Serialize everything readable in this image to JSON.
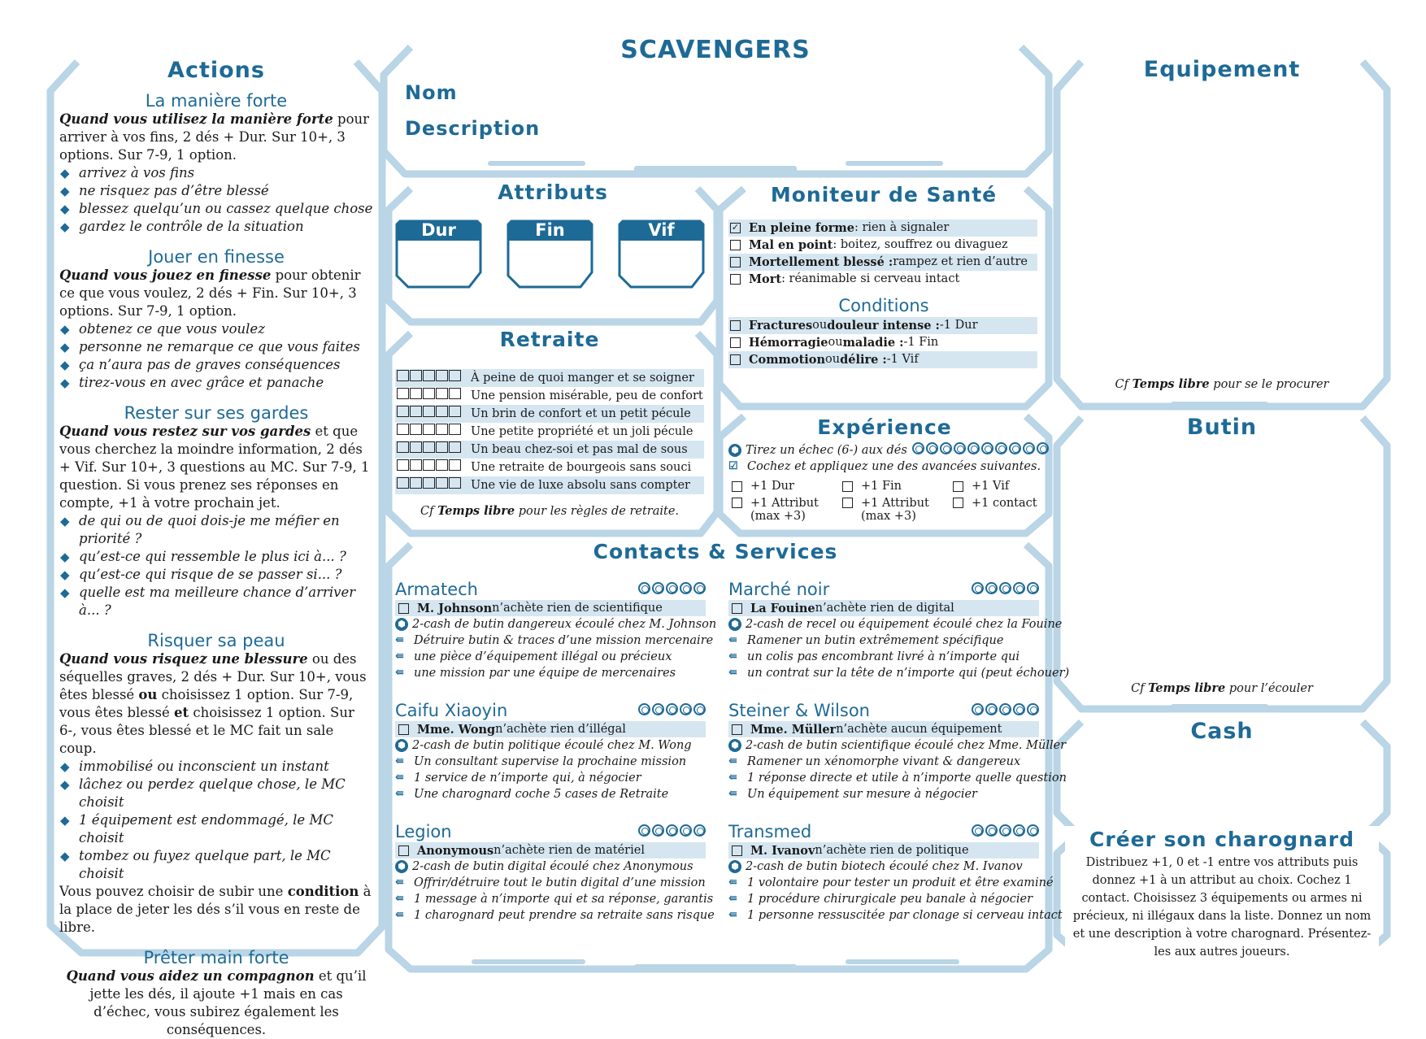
{
  "header": {
    "title": "SCAVENGERS",
    "nom_label": "Nom",
    "description_label": "Description"
  },
  "actions": {
    "title": "Actions",
    "moves": [
      {
        "name": "La manière forte",
        "trigger": "Quand vous utilisez la manière forte",
        "rest": " pour arriver à vos fins, 2 dés + Dur. Sur 10+, 3 options. Sur 7-9, 1 option.",
        "options": [
          "arrivez à vos fins",
          "ne risquez pas d’être blessé",
          "blessez quelqu’un ou cassez quelque chose",
          "gardez le contrôle de la situation"
        ]
      },
      {
        "name": "Jouer en finesse",
        "trigger": "Quand vous jouez en finesse",
        "rest": " pour obtenir ce que vous voulez, 2 dés + Fin. Sur 10+, 3 options. Sur 7-9, 1 option.",
        "options": [
          "obtenez ce que vous voulez",
          "personne ne remarque ce que vous faites",
          "ça n’aura pas de graves conséquences",
          "tirez-vous en avec grâce et panache"
        ]
      },
      {
        "name": "Rester sur ses gardes",
        "trigger": "Quand vous restez sur vos gardes",
        "rest": " et que vous cherchez la moindre information, 2 dés + Vif. Sur 10+, 3 questions au MC. Sur 7-9, 1 question. Si vous prenez ses réponses en compte, +1 à votre prochain jet.",
        "options": [
          "de qui ou de quoi dois-je me méfier en priorité ?",
          "qu’est-ce qui ressemble le plus ici à... ?",
          "qu’est-ce qui risque de se passer si... ?",
          "quelle est ma meilleure chance d’arriver à... ?"
        ]
      }
    ],
    "risk": {
      "name": "Risquer sa peau",
      "trigger": "Quand vous risquez une blessure",
      "p1": " ou des séquelles graves, 2 dés + Dur. Sur 10+, vous êtes blessé ",
      "ou": "ou",
      "p2": " choisissez 1 option. Sur 7-9, vous êtes blessé ",
      "et": "et",
      "p3": " choisissez 1 option. Sur 6-, vous êtes blessé et le MC fait un sale coup.",
      "options": [
        "immobilisé ou inconscient un instant",
        "lâchez ou perdez quelque chose, le MC choisit",
        "1 équipement est endommagé, le MC choisit",
        "tombez ou fuyez quelque part, le MC choisit"
      ],
      "after1": "Vous pouvez choisir de subir une ",
      "after_bold": "condition",
      "after2": " à la place de jeter les dés s’il vous en reste de libre."
    },
    "help": {
      "name": "Prêter main forte",
      "trigger": "Quand vous aidez un compagnon",
      "rest": " et qu’il jette les dés, il ajoute +1 mais en cas d’échec, vous subirez également les conséquences."
    }
  },
  "attributes": {
    "title": "Attributs",
    "names": [
      "Dur",
      "Fin",
      "Vif"
    ]
  },
  "health": {
    "title": "Moniteur de Santé",
    "states": [
      {
        "bold": "En pleine forme",
        "rest": " : rien à signaler",
        "checked": true
      },
      {
        "bold": "Mal en point",
        "rest": " : boitez, souffrez ou divaguez",
        "checked": false
      },
      {
        "bold": "Mortellement blessé :",
        "rest": " rampez et rien d’autre",
        "checked": false
      },
      {
        "bold": "Mort",
        "rest": " : réanimable si cerveau intact",
        "checked": false
      }
    ],
    "conditions_title": "Conditions",
    "conditions": [
      {
        "b1": "Fractures",
        "m": " ou ",
        "b2": "douleur intense :",
        "rest": " -1 Dur"
      },
      {
        "b1": "Hémorragie",
        "m": " ou ",
        "b2": "maladie :",
        "rest": " -1 Fin"
      },
      {
        "b1": "Commotion",
        "m": " ou ",
        "b2": "délire :",
        "rest": " -1 Vif"
      }
    ]
  },
  "retraite": {
    "title": "Retraite",
    "levels": [
      "À peine de quoi manger et se soigner",
      "Une pension misérable, peu de confort",
      "Un brin de confort et un petit pécule",
      "Une petite propriété et un joli pécule",
      "Un beau chez-soi et pas mal de sous",
      "Une retraite de bourgeois sans souci",
      "Une vie de luxe absolu sans compter"
    ],
    "note_pre": "Cf ",
    "note_bold": "Temps libre",
    "note_post": " pour les règles de retraite."
  },
  "experience": {
    "title": "Expérience",
    "line1": "Tirez un échec (6-) aux dés",
    "line2": "Cochez et appliquez une des avancées suivantes.",
    "advances": [
      "+1 Dur",
      "+1 Fin",
      "+1 Vif",
      "+1 Attribut (max +3)",
      "+1 Attribut (max +3)",
      "+1 contact"
    ]
  },
  "contacts": {
    "title": "Contacts & Services",
    "list": [
      {
        "name": "Armatech",
        "who": "M. Johnson",
        "buy": " n’achète rien de scientifique",
        "lines": [
          "2-cash de butin dangereux écoulé chez M. Johnson",
          "Détruire butin & traces d’une mission mercenaire",
          "une pièce d’équipement illégal ou précieux",
          "une mission par une équipe de mercenaires"
        ]
      },
      {
        "name": "Marché noir",
        "who": "La Fouine",
        "buy": " n’achète rien de digital",
        "lines": [
          "2-cash de recel ou équipement écoulé chez la Fouine",
          "Ramener un butin extrêmement spécifique",
          "un colis pas encombrant livré à n’importe qui",
          "un contrat sur la tête de n’importe qui (peut échouer)"
        ]
      },
      {
        "name": "Caifu Xiaoyin",
        "who": "Mme. Wong",
        "buy": " n’achète rien d’illégal",
        "lines": [
          "2-cash de butin politique écoulé chez M. Wong",
          "Un consultant supervise la prochaine mission",
          "1 service de n’importe qui, à négocier",
          "Une charognard coche 5 cases de Retraite"
        ]
      },
      {
        "name": "Steiner & Wilson",
        "who": "Mme. Müller",
        "buy": " n’achète aucun équipement",
        "lines": [
          "2-cash de butin scientifique écoulé chez Mme. Müller",
          "Ramener un xénomorphe vivant & dangereux",
          "1 réponse directe et utile à n’importe quelle question",
          "Un équipement sur mesure à négocier"
        ]
      },
      {
        "name": "Legion",
        "who": "Anonymous",
        "buy": " n’achète rien de matériel",
        "lines": [
          "2-cash de butin digital écoulé chez Anonymous",
          "Offrir/détruire tout le butin digital d’une mission",
          "1 message à n’importe qui et sa réponse, garantis",
          "1 charognard peut prendre sa retraite sans risque"
        ]
      },
      {
        "name": "Transmed",
        "who": "M. Ivanov",
        "buy": " n’achète rien de politique",
        "lines": [
          "2-cash de butin biotech écoulé chez M. Ivanov",
          "1 volontaire pour tester un produit et être examiné",
          "1 procédure chirurgicale peu banale à négocier",
          "1 personne ressuscitée par clonage si cerveau intact"
        ]
      }
    ]
  },
  "equipement": {
    "title": "Equipement",
    "note_pre": "Cf ",
    "note_bold": "Temps libre",
    "note_post": " pour se le procurer"
  },
  "butin": {
    "title": "Butin",
    "note_pre": "Cf ",
    "note_bold": "Temps libre",
    "note_post": " pour l’écouler"
  },
  "cash": {
    "title": "Cash"
  },
  "creer": {
    "title": "Créer son charognard",
    "text": "Distribuez +1, 0 et -1 entre vos attributs puis donnez +1 à un attribut au choix. Cochez 1 contact. Choisissez 3 équipements ou armes ni précieux, ni illégaux dans la liste. Donnez un nom et une description à votre charognard. Présentez-les aux autres joueurs."
  },
  "colors": {
    "accent": "#1e6a96",
    "frame": "#b9d5e6",
    "shade": "#d5e6f1"
  }
}
